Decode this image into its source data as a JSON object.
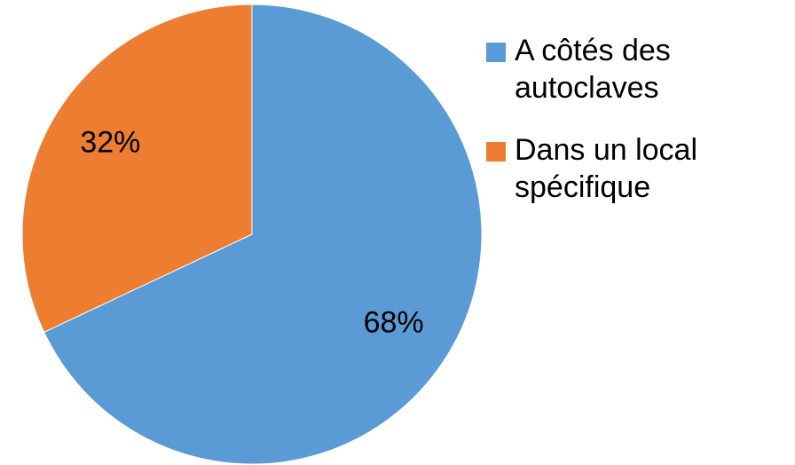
{
  "chart_data": {
    "type": "pie",
    "categories": [
      "A côtés des autoclaves",
      "Dans un local spécifique"
    ],
    "values": [
      68,
      32
    ],
    "value_labels": [
      "68%",
      "32%"
    ],
    "colors": [
      "#5b9bd5",
      "#ed7d31"
    ]
  }
}
